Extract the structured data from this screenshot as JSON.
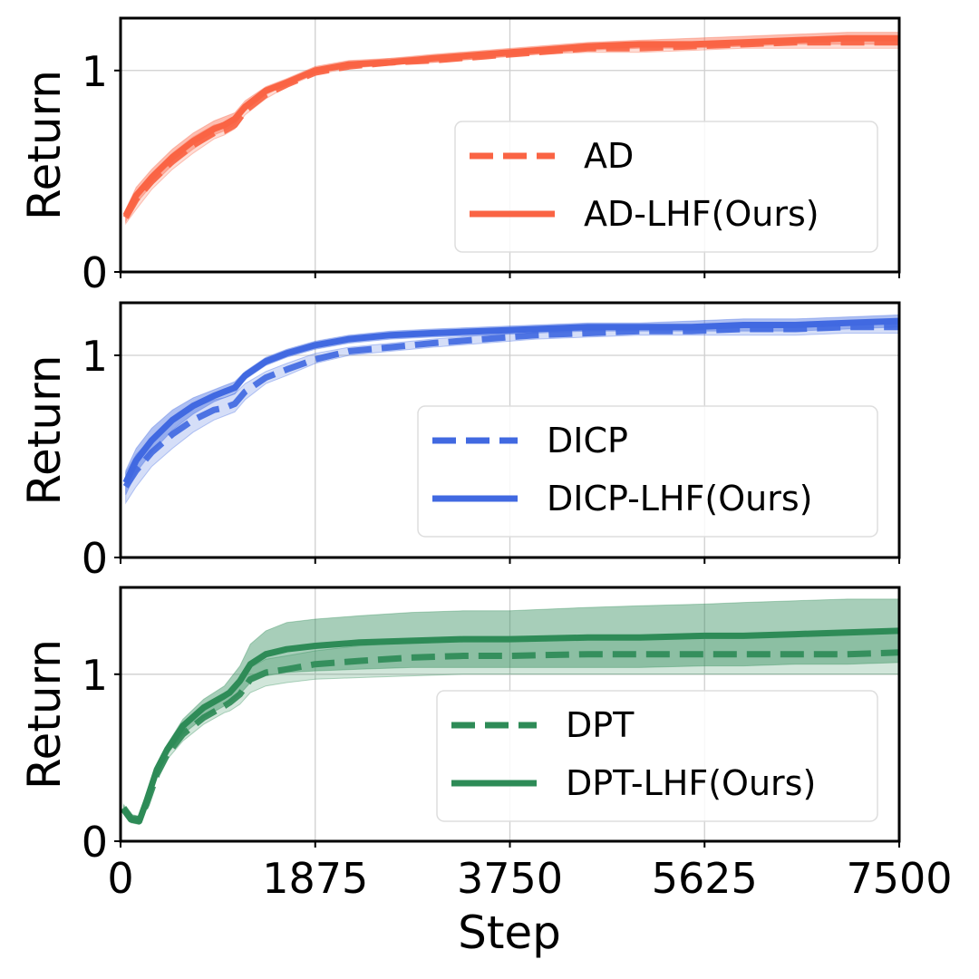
{
  "chart_data": [
    {
      "type": "line",
      "title": "",
      "xlabel": "",
      "ylabel": "Return",
      "xlim": [
        0,
        7500
      ],
      "ylim": [
        0,
        1.26
      ],
      "yticks": [
        0,
        1
      ],
      "xticks": [
        0,
        1875,
        3750,
        5625,
        7500
      ],
      "grid": true,
      "legend_position": "lower-right",
      "color": "#FA6444",
      "x": [
        50,
        150,
        300,
        500,
        700,
        900,
        1000,
        1100,
        1200,
        1400,
        1600,
        1875,
        2200,
        2600,
        3000,
        3500,
        4000,
        4500,
        5000,
        5500,
        6000,
        6500,
        7000,
        7500
      ],
      "series": [
        {
          "name": "AD",
          "style": "dashed",
          "values": [
            0.27,
            0.36,
            0.45,
            0.55,
            0.63,
            0.69,
            0.7,
            0.73,
            0.8,
            0.88,
            0.93,
            0.99,
            1.02,
            1.04,
            1.05,
            1.07,
            1.09,
            1.11,
            1.11,
            1.12,
            1.13,
            1.14,
            1.14,
            1.14
          ],
          "band_low": [
            0.24,
            0.31,
            0.41,
            0.51,
            0.59,
            0.66,
            0.68,
            0.71,
            0.78,
            0.86,
            0.92,
            0.98,
            1.01,
            1.03,
            1.04,
            1.06,
            1.08,
            1.09,
            1.09,
            1.1,
            1.11,
            1.11,
            1.11,
            1.11
          ],
          "band_high": [
            0.3,
            0.39,
            0.49,
            0.59,
            0.67,
            0.73,
            0.74,
            0.77,
            0.83,
            0.91,
            0.95,
            1.01,
            1.04,
            1.06,
            1.07,
            1.09,
            1.11,
            1.13,
            1.13,
            1.14,
            1.15,
            1.16,
            1.17,
            1.17
          ]
        },
        {
          "name": "AD-LHF(Ours)",
          "style": "solid",
          "values": [
            0.28,
            0.38,
            0.47,
            0.57,
            0.65,
            0.71,
            0.73,
            0.76,
            0.82,
            0.9,
            0.94,
            1.0,
            1.03,
            1.04,
            1.06,
            1.08,
            1.1,
            1.12,
            1.13,
            1.13,
            1.14,
            1.15,
            1.16,
            1.16
          ],
          "band_low": [
            0.25,
            0.34,
            0.43,
            0.53,
            0.61,
            0.68,
            0.7,
            0.73,
            0.8,
            0.88,
            0.93,
            0.99,
            1.02,
            1.03,
            1.04,
            1.06,
            1.08,
            1.1,
            1.11,
            1.11,
            1.12,
            1.13,
            1.13,
            1.13
          ],
          "band_high": [
            0.31,
            0.42,
            0.51,
            0.61,
            0.69,
            0.75,
            0.77,
            0.79,
            0.85,
            0.92,
            0.96,
            1.02,
            1.05,
            1.06,
            1.08,
            1.1,
            1.12,
            1.14,
            1.15,
            1.16,
            1.17,
            1.18,
            1.19,
            1.19
          ]
        }
      ]
    },
    {
      "type": "line",
      "title": "",
      "xlabel": "",
      "ylabel": "Return",
      "xlim": [
        0,
        7500
      ],
      "ylim": [
        0,
        1.26
      ],
      "yticks": [
        0,
        1
      ],
      "xticks": [
        0,
        1875,
        3750,
        5625,
        7500
      ],
      "grid": true,
      "legend_position": "lower-right",
      "color": "#4169E1",
      "x": [
        50,
        150,
        300,
        500,
        700,
        900,
        1000,
        1100,
        1200,
        1400,
        1600,
        1875,
        2200,
        2600,
        3000,
        3500,
        4000,
        4500,
        5000,
        5500,
        6000,
        6500,
        7000,
        7500
      ],
      "series": [
        {
          "name": "DICP",
          "style": "dashed",
          "values": [
            0.35,
            0.43,
            0.52,
            0.61,
            0.68,
            0.73,
            0.74,
            0.76,
            0.82,
            0.89,
            0.93,
            0.98,
            1.02,
            1.04,
            1.06,
            1.08,
            1.1,
            1.11,
            1.12,
            1.12,
            1.13,
            1.13,
            1.14,
            1.14
          ],
          "band_low": [
            0.27,
            0.35,
            0.45,
            0.54,
            0.62,
            0.68,
            0.7,
            0.72,
            0.78,
            0.86,
            0.9,
            0.96,
            1.0,
            1.02,
            1.04,
            1.06,
            1.08,
            1.09,
            1.1,
            1.1,
            1.1,
            1.1,
            1.11,
            1.11
          ],
          "band_high": [
            0.42,
            0.51,
            0.59,
            0.68,
            0.74,
            0.78,
            0.79,
            0.81,
            0.86,
            0.92,
            0.96,
            1.01,
            1.04,
            1.06,
            1.08,
            1.1,
            1.12,
            1.13,
            1.14,
            1.14,
            1.15,
            1.16,
            1.17,
            1.17
          ]
        },
        {
          "name": "DICP-LHF(Ours)",
          "style": "solid",
          "values": [
            0.37,
            0.48,
            0.58,
            0.68,
            0.75,
            0.8,
            0.82,
            0.84,
            0.9,
            0.97,
            1.01,
            1.05,
            1.08,
            1.1,
            1.11,
            1.12,
            1.13,
            1.14,
            1.14,
            1.14,
            1.15,
            1.15,
            1.16,
            1.17
          ],
          "band_low": [
            0.31,
            0.42,
            0.52,
            0.63,
            0.71,
            0.77,
            0.79,
            0.81,
            0.88,
            0.95,
            0.99,
            1.03,
            1.06,
            1.08,
            1.09,
            1.1,
            1.11,
            1.12,
            1.12,
            1.12,
            1.12,
            1.12,
            1.13,
            1.14
          ],
          "band_high": [
            0.43,
            0.54,
            0.64,
            0.73,
            0.79,
            0.83,
            0.85,
            0.87,
            0.92,
            0.99,
            1.03,
            1.07,
            1.1,
            1.12,
            1.13,
            1.14,
            1.15,
            1.16,
            1.16,
            1.17,
            1.18,
            1.18,
            1.19,
            1.2
          ]
        }
      ]
    },
    {
      "type": "line",
      "title": "",
      "xlabel": "Step",
      "ylabel": "Return",
      "xlim": [
        0,
        7500
      ],
      "ylim": [
        0,
        1.52
      ],
      "yticks": [
        0,
        1
      ],
      "xticks": [
        0,
        1875,
        3750,
        5625,
        7500
      ],
      "grid": true,
      "legend_position": "lower-right",
      "color": "#2E8B57",
      "x": [
        30,
        100,
        180,
        250,
        350,
        450,
        600,
        800,
        1000,
        1050,
        1150,
        1250,
        1400,
        1600,
        1875,
        2300,
        2800,
        3300,
        3750,
        4500,
        5000,
        5625,
        6000,
        6500,
        7000,
        7500
      ],
      "series": [
        {
          "name": "DPT",
          "style": "dashed",
          "values": [
            0.2,
            0.14,
            0.13,
            0.22,
            0.4,
            0.52,
            0.64,
            0.74,
            0.81,
            0.83,
            0.88,
            0.97,
            1.01,
            1.03,
            1.06,
            1.08,
            1.1,
            1.11,
            1.11,
            1.12,
            1.12,
            1.12,
            1.12,
            1.12,
            1.12,
            1.13
          ],
          "band_low": [
            0.18,
            0.12,
            0.11,
            0.2,
            0.38,
            0.49,
            0.6,
            0.7,
            0.77,
            0.78,
            0.82,
            0.89,
            0.93,
            0.95,
            0.97,
            0.98,
            0.99,
            1.0,
            1.0,
            1.0,
            1.0,
            1.0,
            1.0,
            1.0,
            1.0,
            1.0
          ],
          "band_high": [
            0.22,
            0.16,
            0.15,
            0.24,
            0.42,
            0.54,
            0.67,
            0.78,
            0.85,
            0.88,
            0.94,
            1.04,
            1.09,
            1.11,
            1.14,
            1.17,
            1.19,
            1.2,
            1.21,
            1.22,
            1.22,
            1.23,
            1.23,
            1.24,
            1.24,
            1.25
          ]
        },
        {
          "name": "DPT-LHF(Ours)",
          "style": "solid",
          "values": [
            0.19,
            0.13,
            0.12,
            0.24,
            0.43,
            0.55,
            0.69,
            0.8,
            0.87,
            0.89,
            0.96,
            1.06,
            1.12,
            1.15,
            1.17,
            1.19,
            1.2,
            1.21,
            1.21,
            1.22,
            1.22,
            1.23,
            1.23,
            1.24,
            1.25,
            1.26
          ],
          "band_low": [
            0.17,
            0.11,
            0.1,
            0.22,
            0.4,
            0.52,
            0.64,
            0.74,
            0.81,
            0.83,
            0.88,
            0.95,
            0.99,
            1.01,
            1.02,
            1.03,
            1.04,
            1.04,
            1.04,
            1.04,
            1.04,
            1.05,
            1.05,
            1.06,
            1.06,
            1.07
          ],
          "band_high": [
            0.21,
            0.15,
            0.14,
            0.26,
            0.46,
            0.58,
            0.73,
            0.85,
            0.93,
            0.97,
            1.05,
            1.18,
            1.26,
            1.31,
            1.33,
            1.35,
            1.37,
            1.38,
            1.38,
            1.4,
            1.41,
            1.42,
            1.43,
            1.44,
            1.45,
            1.45
          ]
        }
      ]
    }
  ]
}
